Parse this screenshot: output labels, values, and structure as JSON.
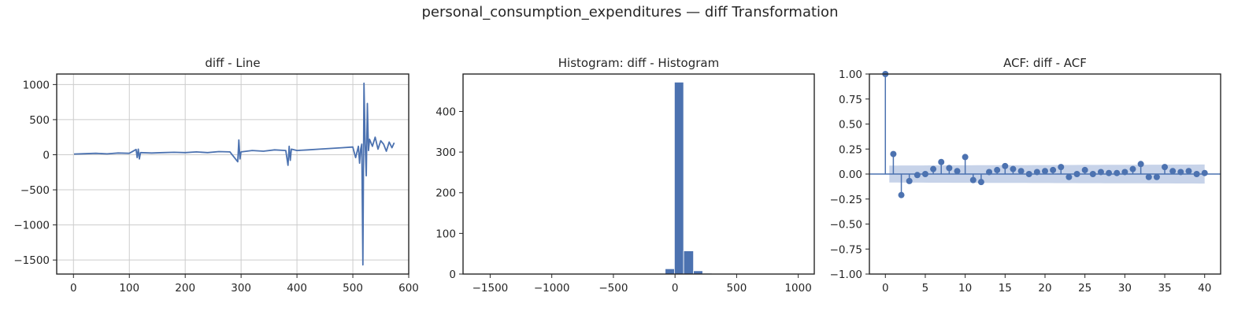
{
  "figure": {
    "title": "personal_consumption_expenditures — diff Transformation",
    "colors": {
      "series": "#4c72b0",
      "band": "#c7d3e9",
      "grid": "#cccccc",
      "axes": "#262626"
    }
  },
  "chart_data": [
    {
      "type": "line",
      "title": "diff - Line",
      "xlabel": "",
      "ylabel": "",
      "xlim": [
        -30,
        600
      ],
      "ylim": [
        -1700,
        1150
      ],
      "xticks": [
        0,
        100,
        200,
        300,
        400,
        500,
        600
      ],
      "yticks": [
        -1500,
        -1000,
        -500,
        0,
        500,
        1000
      ],
      "ytick_labels": [
        "−1500",
        "−1000",
        "−500",
        "0",
        "500",
        "1000"
      ],
      "grid": true,
      "series": [
        {
          "x": [
            1,
            20,
            40,
            60,
            80,
            100,
            112,
            114,
            116,
            118,
            120,
            140,
            160,
            180,
            200,
            220,
            240,
            260,
            280,
            294,
            296,
            298,
            300,
            320,
            340,
            360,
            380,
            384,
            386,
            388,
            390,
            400,
            420,
            440,
            460,
            480,
            500,
            505,
            510,
            512,
            514,
            516,
            518,
            520,
            522,
            524,
            526,
            528,
            530,
            535,
            540,
            545,
            550,
            555,
            560,
            565,
            570,
            574
          ],
          "y": [
            10,
            15,
            20,
            12,
            25,
            20,
            75,
            -40,
            80,
            -60,
            30,
            25,
            30,
            35,
            30,
            40,
            30,
            45,
            40,
            -100,
            210,
            -60,
            40,
            60,
            50,
            70,
            60,
            -150,
            120,
            -80,
            80,
            60,
            70,
            80,
            90,
            100,
            110,
            -40,
            120,
            -120,
            80,
            150,
            -1570,
            1020,
            150,
            -300,
            730,
            60,
            220,
            120,
            250,
            80,
            200,
            150,
            50,
            180,
            100,
            170
          ]
        }
      ]
    },
    {
      "type": "bar",
      "title": "Histogram: diff - Histogram",
      "xlabel": "",
      "ylabel": "",
      "xlim": [
        -1720,
        1130
      ],
      "ylim": [
        0,
        492
      ],
      "xticks": [
        -1500,
        -1000,
        -500,
        0,
        500,
        1000
      ],
      "xtick_labels": [
        "−1500",
        "−1000",
        "−500",
        "0",
        "500",
        "1000"
      ],
      "yticks": [
        0,
        100,
        200,
        300,
        400
      ],
      "grid": false,
      "bins": [
        {
          "x0": -160,
          "x1": -80,
          "count": 1
        },
        {
          "x0": -80,
          "x1": -5,
          "count": 13
        },
        {
          "x0": -5,
          "x1": 70,
          "count": 472
        },
        {
          "x0": 70,
          "x1": 150,
          "count": 57
        },
        {
          "x0": 150,
          "x1": 225,
          "count": 8
        },
        {
          "x0": 225,
          "x1": 300,
          "count": 2
        }
      ]
    },
    {
      "type": "scatter",
      "title": "ACF: diff - ACF",
      "xlabel": "",
      "ylabel": "",
      "xlim": [
        -2,
        42
      ],
      "ylim": [
        -1.0,
        1.0
      ],
      "xticks": [
        0,
        5,
        10,
        15,
        20,
        25,
        30,
        35,
        40
      ],
      "yticks": [
        -1.0,
        -0.75,
        -0.5,
        -0.25,
        0.0,
        0.25,
        0.5,
        0.75,
        1.0
      ],
      "ytick_labels": [
        "−1.00",
        "−0.75",
        "−0.50",
        "−0.25",
        "0.00",
        "0.25",
        "0.50",
        "0.75",
        "1.00"
      ],
      "grid": false,
      "lags": [
        0,
        1,
        2,
        3,
        4,
        5,
        6,
        7,
        8,
        9,
        10,
        11,
        12,
        13,
        14,
        15,
        16,
        17,
        18,
        19,
        20,
        21,
        22,
        23,
        24,
        25,
        26,
        27,
        28,
        29,
        30,
        31,
        32,
        33,
        34,
        35,
        36,
        37,
        38,
        39,
        40
      ],
      "values": [
        1.0,
        0.2,
        -0.21,
        -0.07,
        -0.01,
        0.0,
        0.05,
        0.12,
        0.06,
        0.03,
        0.17,
        -0.06,
        -0.08,
        0.02,
        0.04,
        0.08,
        0.05,
        0.03,
        0.0,
        0.02,
        0.03,
        0.04,
        0.07,
        -0.03,
        0.0,
        0.04,
        0.0,
        0.02,
        0.01,
        0.01,
        0.02,
        0.05,
        0.1,
        -0.03,
        -0.03,
        0.07,
        0.03,
        0.02,
        0.03,
        0.0,
        0.01
      ],
      "confidence_band": [
        0.085,
        0.095
      ]
    }
  ]
}
